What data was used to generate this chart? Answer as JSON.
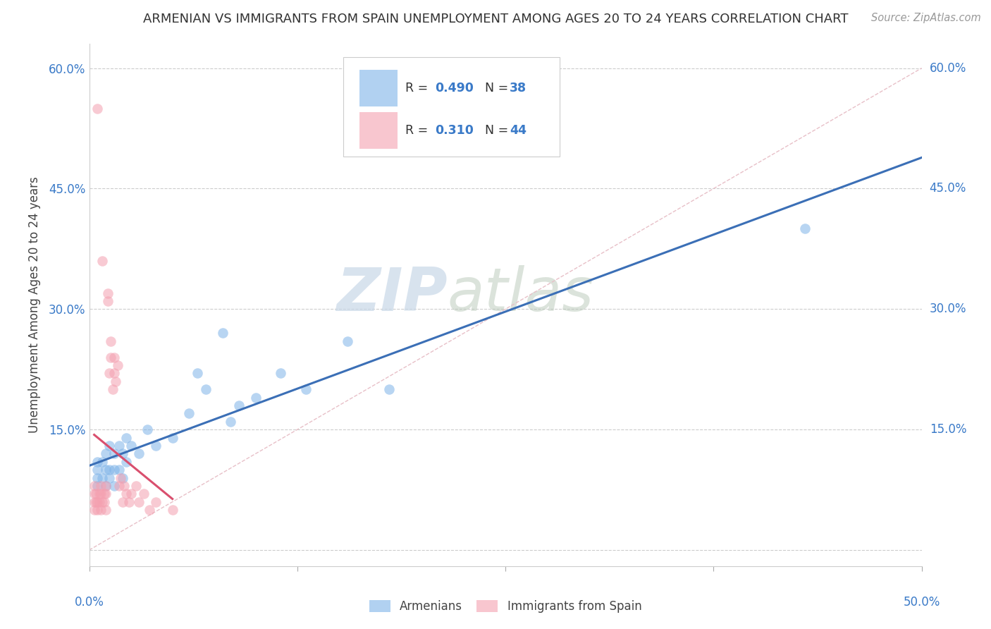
{
  "title": "ARMENIAN VS IMMIGRANTS FROM SPAIN UNEMPLOYMENT AMONG AGES 20 TO 24 YEARS CORRELATION CHART",
  "source": "Source: ZipAtlas.com",
  "ylabel": "Unemployment Among Ages 20 to 24 years",
  "xlim": [
    0.0,
    0.5
  ],
  "ylim": [
    -0.02,
    0.63
  ],
  "y_ticks": [
    0.0,
    0.15,
    0.3,
    0.45,
    0.6
  ],
  "x_ticks": [
    0.0,
    0.125,
    0.25,
    0.375,
    0.5
  ],
  "watermark_zip": "ZIP",
  "watermark_atlas": "atlas",
  "blue_color": "#7EB3E8",
  "pink_color": "#F4A0B0",
  "blue_line_color": "#3B6FB6",
  "pink_line_color": "#D94F6E",
  "diag_color": "#E8C0C8",
  "armenians_x": [
    0.005,
    0.005,
    0.005,
    0.005,
    0.008,
    0.008,
    0.01,
    0.01,
    0.01,
    0.012,
    0.012,
    0.012,
    0.015,
    0.015,
    0.015,
    0.018,
    0.018,
    0.02,
    0.02,
    0.022,
    0.022,
    0.025,
    0.03,
    0.035,
    0.04,
    0.05,
    0.06,
    0.065,
    0.07,
    0.08,
    0.085,
    0.09,
    0.1,
    0.115,
    0.13,
    0.155,
    0.18,
    0.43
  ],
  "armenians_y": [
    0.08,
    0.09,
    0.1,
    0.11,
    0.09,
    0.11,
    0.08,
    0.1,
    0.12,
    0.09,
    0.1,
    0.13,
    0.08,
    0.1,
    0.12,
    0.1,
    0.13,
    0.09,
    0.12,
    0.11,
    0.14,
    0.13,
    0.12,
    0.15,
    0.13,
    0.14,
    0.17,
    0.22,
    0.2,
    0.27,
    0.16,
    0.18,
    0.19,
    0.22,
    0.2,
    0.26,
    0.2,
    0.4
  ],
  "spain_x": [
    0.003,
    0.003,
    0.003,
    0.003,
    0.004,
    0.004,
    0.005,
    0.005,
    0.005,
    0.006,
    0.006,
    0.007,
    0.007,
    0.007,
    0.008,
    0.008,
    0.009,
    0.009,
    0.01,
    0.01,
    0.01,
    0.011,
    0.011,
    0.012,
    0.013,
    0.013,
    0.014,
    0.015,
    0.015,
    0.016,
    0.017,
    0.018,
    0.019,
    0.02,
    0.021,
    0.022,
    0.024,
    0.025,
    0.028,
    0.03,
    0.033,
    0.036,
    0.04,
    0.05
  ],
  "spain_y": [
    0.05,
    0.06,
    0.07,
    0.08,
    0.06,
    0.07,
    0.05,
    0.06,
    0.55,
    0.06,
    0.07,
    0.05,
    0.07,
    0.08,
    0.06,
    0.36,
    0.06,
    0.07,
    0.05,
    0.07,
    0.08,
    0.31,
    0.32,
    0.22,
    0.24,
    0.26,
    0.2,
    0.22,
    0.24,
    0.21,
    0.23,
    0.08,
    0.09,
    0.06,
    0.08,
    0.07,
    0.06,
    0.07,
    0.08,
    0.06,
    0.07,
    0.05,
    0.06,
    0.05
  ]
}
